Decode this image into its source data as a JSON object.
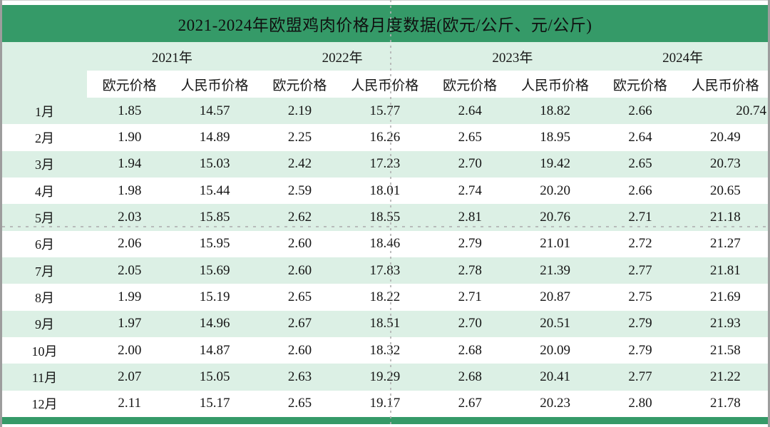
{
  "title": "2021-2024年欧盟鸡肉价格月度数据(欧元/公斤、元/公斤)",
  "colors": {
    "banner_green": "#359a68",
    "row_light_green": "#dcf0e5",
    "bottom_bar_green": "#359a68",
    "sheet_edge_gray": "#9d9d9d"
  },
  "table": {
    "year_headers": [
      "2021年",
      "2022年",
      "2023年",
      "2024年"
    ],
    "sub_headers": [
      "欧元价格",
      "人民币价格",
      "欧元价格",
      "人民币价格",
      "欧元价格",
      "人民币价格",
      "欧元价格",
      "人民币价格"
    ],
    "rows": [
      {
        "month": "1月",
        "values": [
          "1.85",
          "14.57",
          "2.19",
          "15.77",
          "2.64",
          "18.82",
          "2.66",
          "20.74"
        ]
      },
      {
        "month": "2月",
        "values": [
          "1.90",
          "14.89",
          "2.25",
          "16.26",
          "2.65",
          "18.95",
          "2.64",
          "20.49"
        ]
      },
      {
        "month": "3月",
        "values": [
          "1.94",
          "15.03",
          "2.42",
          "17.23",
          "2.70",
          "19.42",
          "2.65",
          "20.73"
        ]
      },
      {
        "month": "4月",
        "values": [
          "1.98",
          "15.44",
          "2.59",
          "18.01",
          "2.74",
          "20.20",
          "2.66",
          "20.65"
        ]
      },
      {
        "month": "5月",
        "values": [
          "2.03",
          "15.85",
          "2.62",
          "18.55",
          "2.81",
          "20.76",
          "2.71",
          "21.18"
        ]
      },
      {
        "month": "6月",
        "values": [
          "2.06",
          "15.95",
          "2.60",
          "18.46",
          "2.79",
          "21.01",
          "2.72",
          "21.27"
        ]
      },
      {
        "month": "7月",
        "values": [
          "2.05",
          "15.69",
          "2.60",
          "17.83",
          "2.78",
          "21.39",
          "2.77",
          "21.81"
        ]
      },
      {
        "month": "8月",
        "values": [
          "1.99",
          "15.19",
          "2.65",
          "18.22",
          "2.71",
          "20.87",
          "2.75",
          "21.69"
        ]
      },
      {
        "month": "9月",
        "values": [
          "1.97",
          "14.96",
          "2.67",
          "18.51",
          "2.70",
          "20.51",
          "2.79",
          "21.93"
        ]
      },
      {
        "month": "10月",
        "values": [
          "2.00",
          "14.87",
          "2.60",
          "18.32",
          "2.68",
          "20.09",
          "2.79",
          "21.58"
        ]
      },
      {
        "month": "11月",
        "values": [
          "2.07",
          "15.05",
          "2.63",
          "19.29",
          "2.68",
          "20.41",
          "2.77",
          "21.22"
        ]
      },
      {
        "month": "12月",
        "values": [
          "2.11",
          "15.17",
          "2.65",
          "19.17",
          "2.67",
          "20.23",
          "2.80",
          "21.78"
        ]
      }
    ]
  }
}
